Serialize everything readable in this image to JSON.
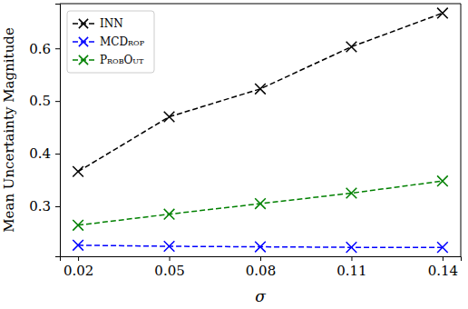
{
  "chart_data": {
    "type": "line",
    "x_label": "σ",
    "y_label": "Mean Uncertainty Magnitude",
    "x": [
      0.02,
      0.05,
      0.08,
      0.11,
      0.14
    ],
    "series": [
      {
        "name": "INN",
        "color": "#000000",
        "marker": "x",
        "line_style": "dashed",
        "values": [
          0.366,
          0.47,
          0.523,
          0.603,
          0.667
        ]
      },
      {
        "name": "MCDrop",
        "color": "#0000ff",
        "marker": "x",
        "line_style": "dashed",
        "values": [
          0.226,
          0.224,
          0.223,
          0.222,
          0.222
        ]
      },
      {
        "name": "ProbOut",
        "color": "#008000",
        "marker": "x",
        "line_style": "dashed",
        "values": [
          0.264,
          0.285,
          0.305,
          0.325,
          0.348
        ]
      }
    ],
    "xlim": [
      0.014,
      0.146
    ],
    "ylim": [
      0.205,
      0.685
    ],
    "xticks": [
      0.02,
      0.05,
      0.08,
      0.11,
      0.14
    ],
    "yticks": [
      0.3,
      0.4,
      0.5,
      0.6
    ],
    "legend": "upper left",
    "grid": false
  }
}
